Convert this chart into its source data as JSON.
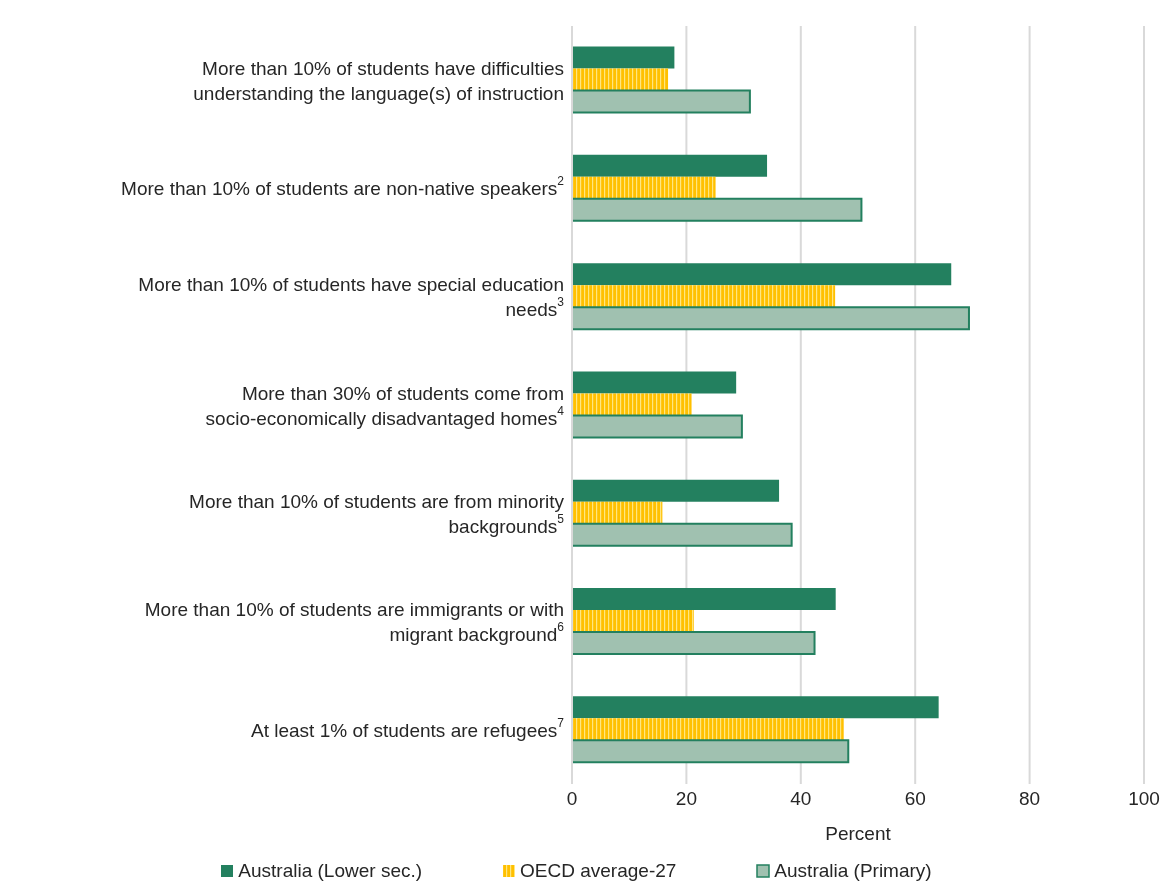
{
  "chart_data": {
    "type": "bar",
    "orientation": "horizontal",
    "xlabel": "Percent",
    "categories": [
      "More than 10% of students have difficulties understanding the language(s) of instruction",
      "More than 10% of students are non-native speakers$^{2}$",
      "More than 10% of students have special education needs$^{3}$",
      "More than 30% of students come from socio-economically disadvantaged homes$^{4}$",
      "More than 10% of students are from minority backgrounds$^{5}$",
      "More than 10% of students are immigrants or with migrant background$^{6}$",
      "At least 1% of students are refugees$^{7}$"
    ],
    "series": [
      {
        "name": "Australia (Lower sec.)",
        "color": "#23805f",
        "values": [
          17.9,
          34.1,
          66.3,
          28.7,
          36.2,
          46.1,
          64.1
        ]
      },
      {
        "name": "OECD average-27",
        "color": "#ffc000",
        "values": [
          16.8,
          25.1,
          46.0,
          20.9,
          15.8,
          21.3,
          47.5
        ]
      },
      {
        "name": "Australia (Primary)",
        "color": "#a0c1b0",
        "values": [
          31.1,
          50.6,
          69.4,
          29.7,
          38.4,
          42.4,
          48.3
        ]
      }
    ],
    "xlim": [
      0,
      100
    ],
    "xticks": [
      0,
      20,
      40,
      60,
      80,
      100
    ],
    "grid": "x",
    "legend": "bottom"
  }
}
